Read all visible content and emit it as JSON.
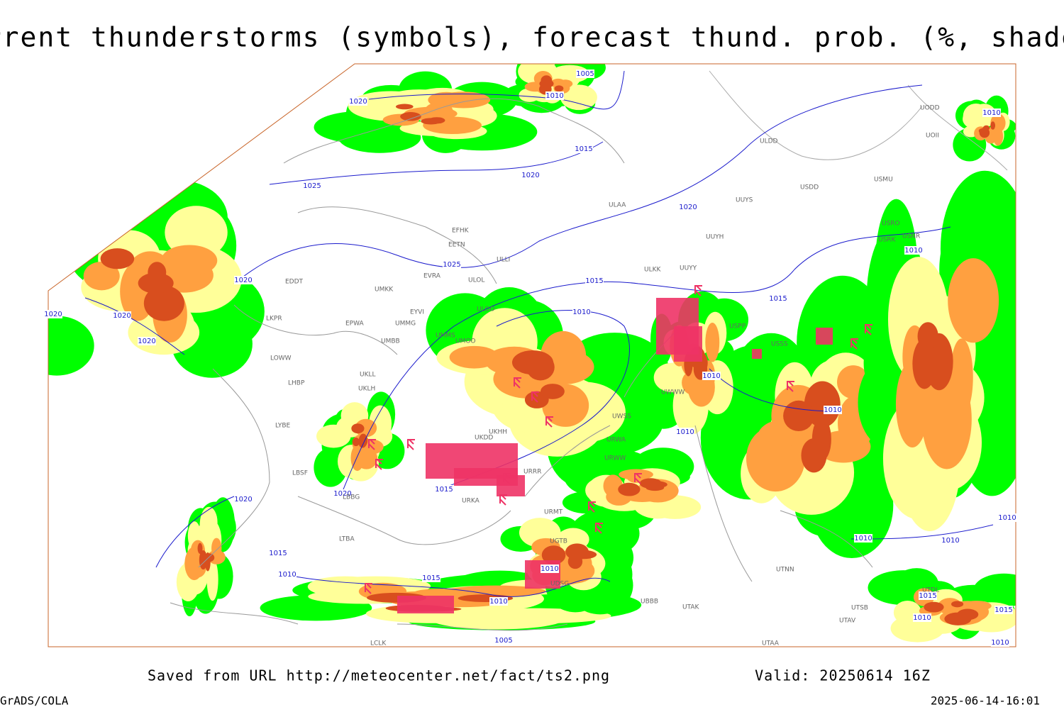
{
  "title": "Current thunderstorms (symbols), forecast thund. prob. (%, shaded)",
  "footer": {
    "source": "Saved from URL http://meteocenter.net/fact/ts2.png",
    "valid": "Valid: 20250614 16Z",
    "software": "GrADS/COLA",
    "timestamp": "2025-06-14-16:01"
  },
  "map": {
    "isobar_labels": [
      1005,
      1010,
      1020,
      1015,
      1020,
      1025,
      1020,
      1025,
      1015,
      1020,
      1020,
      1020,
      1020,
      1010,
      1015,
      1010,
      1010,
      1010,
      1010,
      1010,
      1015,
      1020,
      1020,
      1015,
      1010,
      1015,
      1010,
      1010,
      1005,
      1010,
      1010,
      1010,
      1015,
      1015,
      1010,
      1010
    ],
    "station_labels": [
      "UODD",
      "UOII",
      "ULDD",
      "USMU",
      "USDD",
      "ULAA",
      "UUYS",
      "USRO",
      "USRK",
      "USNR",
      "UUYH",
      "EFHK",
      "EETN",
      "ULLI",
      "EVRA",
      "ULOL",
      "EDDT",
      "UMKK",
      "ULKK",
      "UUYY",
      "EYVI",
      "ULOO",
      "EPWA",
      "UMMG",
      "LKPR",
      "UMMS",
      "UMOO",
      "UMBB",
      "USPP",
      "LOWW",
      "LHBP",
      "UKLL",
      "UKLH",
      "USSS",
      "UWWW",
      "UWSS",
      "URWW",
      "LYBE",
      "UKDD",
      "UKHH",
      "URWA",
      "LBSF",
      "URRR",
      "LBBG",
      "URKA",
      "URMT",
      "UBBB",
      "UTAK",
      "UTNN",
      "UTSB",
      "UTAV",
      "UTAA",
      "LTBA",
      "UGTB",
      "UDSG",
      "LCLK",
      "UTDL"
    ]
  }
}
